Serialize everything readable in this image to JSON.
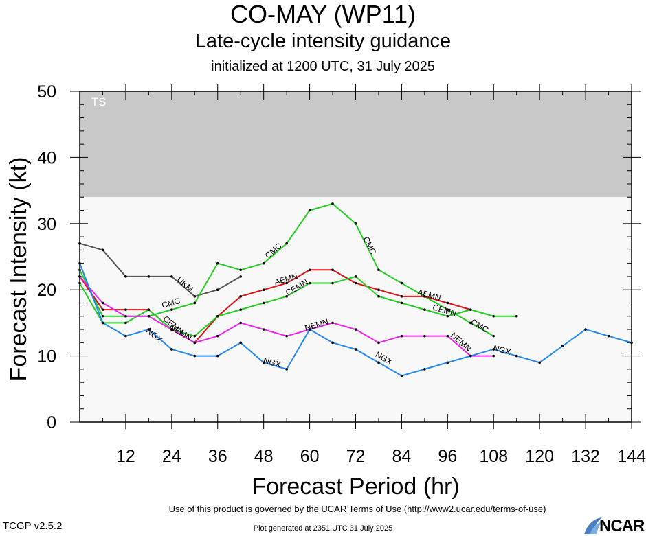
{
  "header": {
    "title": "CO-MAY (WP11)",
    "subtitle": "Late-cycle intensity guidance",
    "init": "initialized at 1200 UTC, 31 July 2025"
  },
  "footer": {
    "terms": "Use of this product is governed by the UCAR Terms of Use (http://www2.ucar.edu/terms-of-use)",
    "version": "TCGP v2.5.2",
    "generated": "Plot generated at 2351 UTC   31 July 2025",
    "logo": "NCAR"
  },
  "chart_data": {
    "type": "line",
    "xlabel": "Forecast Period (hr)",
    "ylabel": "Forecast Intensity (kt)",
    "xlim": [
      0,
      144
    ],
    "ylim": [
      0,
      50
    ],
    "xticks": [
      12,
      24,
      36,
      48,
      60,
      72,
      84,
      96,
      108,
      120,
      132,
      144
    ],
    "yticks": [
      0,
      10,
      20,
      30,
      40,
      50
    ],
    "bands": [
      {
        "label": "TS",
        "from": 34,
        "to": 50,
        "color": "#c8c8c8"
      },
      {
        "label": "",
        "from": 0,
        "to": 34,
        "color": "#f8f8f8"
      }
    ],
    "series": [
      {
        "name": "UKM",
        "color": "#555555",
        "x": [
          0,
          6,
          12,
          18,
          24,
          30,
          36,
          42
        ],
        "y": [
          27,
          26,
          22,
          22,
          22,
          19,
          20,
          22
        ],
        "labels": [
          {
            "x": 27,
            "y": 20.5
          }
        ]
      },
      {
        "name": "CMC",
        "color": "#22cc22",
        "x": [
          0,
          6,
          12,
          18,
          24,
          30,
          36,
          42,
          48,
          54,
          60,
          66,
          72,
          78,
          84,
          90,
          96,
          102,
          108
        ],
        "y": [
          23,
          16,
          16,
          16,
          17,
          18,
          24,
          23,
          24,
          27,
          32,
          33,
          30,
          23,
          21,
          19,
          17,
          15,
          13
        ],
        "labels": [
          {
            "x": 24,
            "y": 17.6
          },
          {
            "x": 51,
            "y": 25.6
          },
          {
            "x": 75,
            "y": 26.5
          },
          {
            "x": 104,
            "y": 14.2
          }
        ]
      },
      {
        "name": "AEMN",
        "color": "#dd1111",
        "x": [
          0,
          6,
          12,
          18,
          24,
          30,
          36,
          42,
          48,
          54,
          60,
          66,
          72,
          78,
          84,
          90,
          96,
          102
        ],
        "y": [
          22,
          17,
          17,
          17,
          14,
          12,
          16,
          19,
          20,
          21,
          23,
          23,
          21,
          20,
          19,
          19,
          18,
          17
        ],
        "labels": [
          {
            "x": 54,
            "y": 21.2
          },
          {
            "x": 91,
            "y": 18.8
          }
        ]
      },
      {
        "name": "CEMN",
        "color": "#22cc22",
        "x": [
          0,
          6,
          12,
          18,
          24,
          30,
          36,
          42,
          48,
          54,
          60,
          66,
          72,
          78,
          84,
          90,
          96,
          102,
          108,
          114
        ],
        "y": [
          21,
          15,
          15,
          17,
          14,
          13,
          16,
          17,
          18,
          19,
          21,
          21,
          22,
          19,
          18,
          17,
          16,
          17,
          16,
          16
        ],
        "labels": [
          {
            "x": 57,
            "y": 20.0
          },
          {
            "x": 24,
            "y": 14.3
          },
          {
            "x": 95,
            "y": 16.5
          }
        ]
      },
      {
        "name": "NEMN",
        "color": "#ee22ee",
        "x": [
          0,
          6,
          12,
          18,
          24,
          30,
          36,
          42,
          48,
          54,
          60,
          66,
          72,
          78,
          84,
          90,
          96,
          102,
          108
        ],
        "y": [
          22,
          18,
          16,
          16,
          14,
          12,
          13,
          15,
          14,
          13,
          14,
          15,
          14,
          12,
          13,
          13,
          13,
          10,
          10
        ],
        "labels": [
          {
            "x": 26,
            "y": 13.2
          },
          {
            "x": 62,
            "y": 14.3
          },
          {
            "x": 99,
            "y": 11.8
          }
        ]
      },
      {
        "name": "NGX",
        "color": "#2288ee",
        "x": [
          0,
          6,
          12,
          18,
          24,
          30,
          36,
          42,
          48,
          54,
          60,
          66,
          72,
          78,
          84,
          90,
          96,
          102,
          108,
          114,
          120,
          126,
          132,
          138,
          144
        ],
        "y": [
          24,
          15,
          13,
          14,
          11,
          10,
          10,
          12,
          9,
          8,
          14,
          12,
          11,
          9,
          7,
          8,
          9,
          10,
          11,
          10,
          9,
          11.5,
          14,
          13,
          12
        ],
        "labels": [
          {
            "x": 19,
            "y": 12.8
          },
          {
            "x": 50,
            "y": 8.6
          },
          {
            "x": 79,
            "y": 9.3
          },
          {
            "x": 110,
            "y": 10.5
          }
        ]
      }
    ]
  }
}
